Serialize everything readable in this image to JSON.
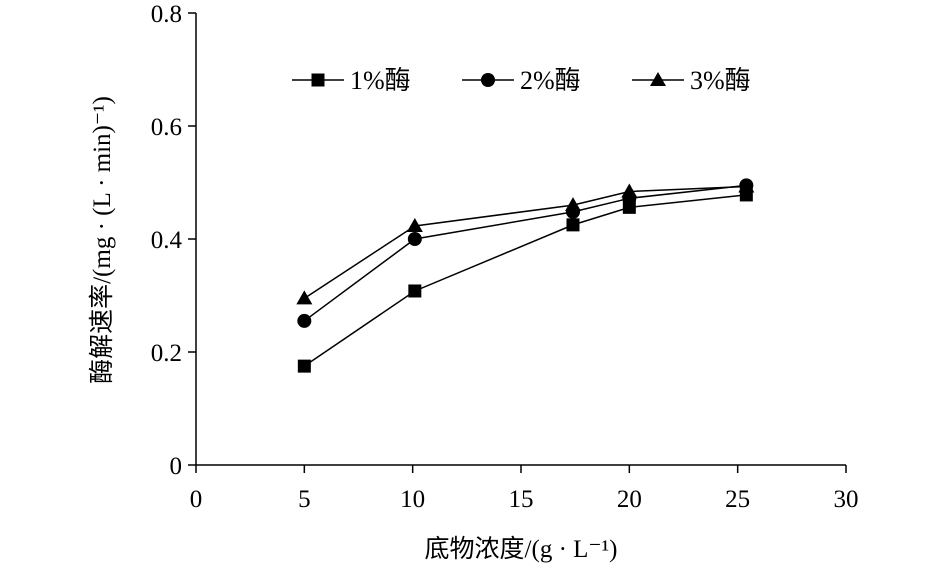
{
  "chart_data": {
    "type": "line",
    "xlabel": "底物浓度/(g · L⁻¹)",
    "ylabel": "酶解速率/(mg · (L · min)⁻¹)",
    "xlim": [
      0,
      30
    ],
    "ylim": [
      0,
      0.8
    ],
    "xticks": [
      "0",
      "5",
      "10",
      "15",
      "20",
      "25",
      "30"
    ],
    "yticks": [
      "0",
      "0.2",
      "0.4",
      "0.6",
      "0.8"
    ],
    "grid": false,
    "legend_position": "top",
    "series": [
      {
        "name": "1%酶",
        "marker": "square",
        "x": [
          5,
          10.1,
          17.4,
          20,
          25.4
        ],
        "y": [
          0.175,
          0.308,
          0.425,
          0.456,
          0.478
        ]
      },
      {
        "name": "2%酶",
        "marker": "circle",
        "x": [
          5,
          10.1,
          17.4,
          20,
          25.4
        ],
        "y": [
          0.255,
          0.4,
          0.448,
          0.472,
          0.495
        ]
      },
      {
        "name": "3%酶",
        "marker": "triangle",
        "x": [
          5,
          10.1,
          17.4,
          20,
          25.4
        ],
        "y": [
          0.295,
          0.423,
          0.46,
          0.484,
          0.493
        ]
      }
    ]
  }
}
